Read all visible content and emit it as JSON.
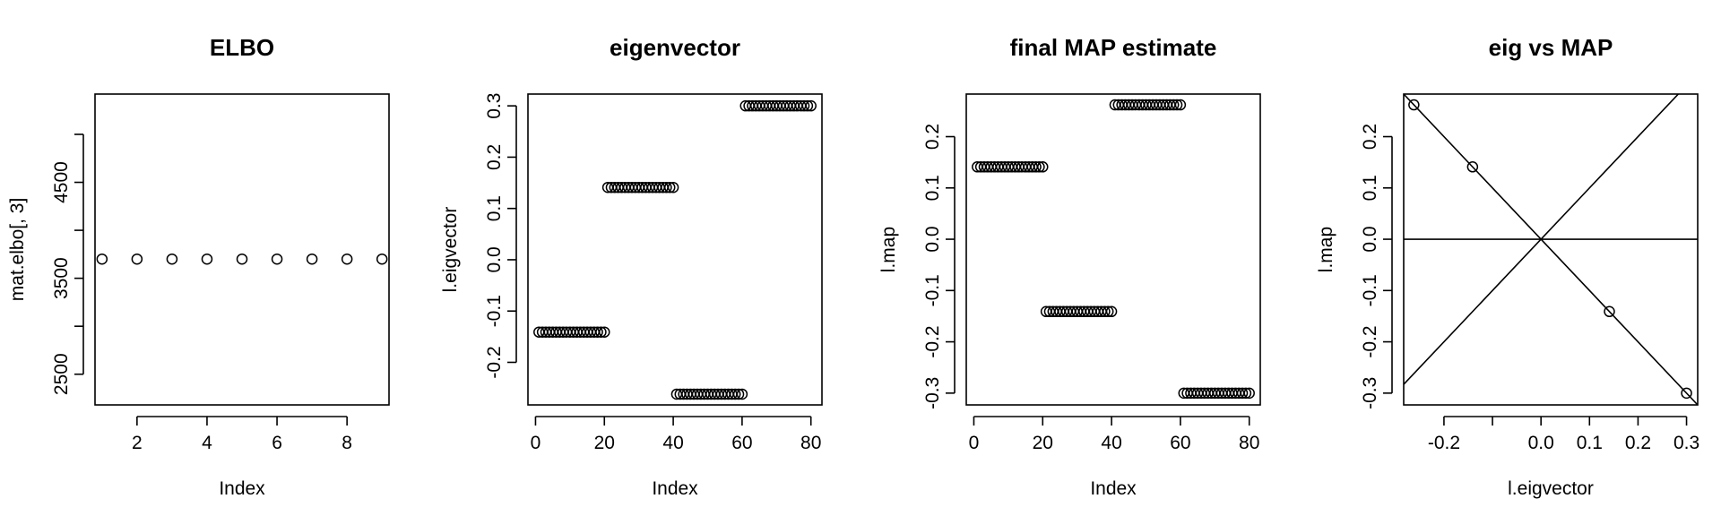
{
  "chart_data": [
    {
      "type": "scatter",
      "title": "ELBO",
      "xlabel": "Index",
      "ylabel": "mat.elbo[, 3]",
      "xlim": [
        0.8,
        9.2
      ],
      "ylim": [
        2180,
        5420
      ],
      "x_ticks": [
        2,
        4,
        6,
        8
      ],
      "x_tick_labels": [
        "2",
        "4",
        "6",
        "8"
      ],
      "y_ticks": [
        2500,
        3500,
        4500
      ],
      "y_tick_labels": [
        "2500",
        "3500",
        "4500"
      ],
      "y_extra_ticks": [
        3000,
        4000,
        5000
      ],
      "grid": false,
      "series": [
        {
          "x": [
            1,
            2,
            3,
            4,
            5,
            6,
            7,
            8,
            9
          ],
          "y": [
            3700,
            3700,
            3700,
            3700,
            3700,
            3700,
            3700,
            3700,
            3700
          ]
        }
      ]
    },
    {
      "type": "scatter",
      "title": "eigenvector",
      "xlabel": "Index",
      "ylabel": "l.eigvector",
      "xlim": [
        -2.2,
        83.2
      ],
      "ylim": [
        -0.283,
        0.323
      ],
      "x_ticks": [
        0,
        20,
        40,
        60,
        80
      ],
      "x_tick_labels": [
        "0",
        "20",
        "40",
        "60",
        "80"
      ],
      "y_ticks": [
        -0.2,
        -0.1,
        0.0,
        0.1,
        0.2,
        0.3
      ],
      "y_tick_labels": [
        "-0.2",
        "-0.1",
        "0.0",
        "0.1",
        "0.2",
        "0.3"
      ],
      "grid": false,
      "segments": [
        {
          "from": 1,
          "to": 20,
          "value": -0.141
        },
        {
          "from": 21,
          "to": 40,
          "value": 0.141
        },
        {
          "from": 41,
          "to": 60,
          "value": -0.262
        },
        {
          "from": 61,
          "to": 80,
          "value": 0.3
        }
      ]
    },
    {
      "type": "scatter",
      "title": "final MAP estimate",
      "xlabel": "Index",
      "ylabel": "l.map",
      "xlim": [
        -2.2,
        83.2
      ],
      "ylim": [
        -0.323,
        0.283
      ],
      "x_ticks": [
        0,
        20,
        40,
        60,
        80
      ],
      "x_tick_labels": [
        "0",
        "20",
        "40",
        "60",
        "80"
      ],
      "y_ticks": [
        -0.3,
        -0.2,
        -0.1,
        0.0,
        0.1,
        0.2
      ],
      "y_tick_labels": [
        "-0.3",
        "-0.2",
        "-0.1",
        "0.0",
        "0.1",
        "0.2"
      ],
      "grid": false,
      "segments": [
        {
          "from": 1,
          "to": 20,
          "value": 0.141
        },
        {
          "from": 21,
          "to": 40,
          "value": -0.141
        },
        {
          "from": 41,
          "to": 60,
          "value": 0.262
        },
        {
          "from": 61,
          "to": 80,
          "value": -0.3
        }
      ]
    },
    {
      "type": "scatter",
      "title": "eig vs MAP",
      "xlabel": "l.eigvector",
      "ylabel": "l.map",
      "xlim": [
        -0.283,
        0.323
      ],
      "ylim": [
        -0.323,
        0.283
      ],
      "x_ticks": [
        -0.2,
        -0.1,
        0.0,
        0.1,
        0.2,
        0.3
      ],
      "x_tick_labels": [
        "-0.2",
        "",
        "0.0",
        "0.1",
        "0.2",
        "0.3"
      ],
      "y_ticks": [
        -0.3,
        -0.2,
        -0.1,
        0.0,
        0.1,
        0.2
      ],
      "y_tick_labels": [
        "-0.3",
        "-0.2",
        "-0.1",
        "0.0",
        "0.1",
        "0.2"
      ],
      "grid": false,
      "series": [
        {
          "x": [
            -0.262,
            -0.141,
            0.141,
            0.3
          ],
          "y": [
            0.262,
            0.141,
            -0.141,
            -0.3
          ]
        }
      ],
      "reference_lines": [
        {
          "intercept": 0,
          "slope": -1
        },
        {
          "intercept": 0,
          "slope": 1
        },
        {
          "intercept": 0,
          "slope": 0
        }
      ]
    }
  ]
}
